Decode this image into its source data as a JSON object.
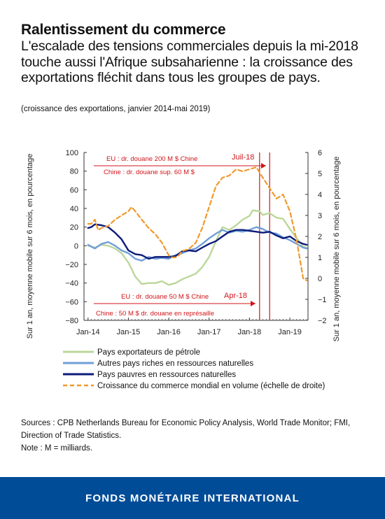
{
  "header": {
    "title": "Ralentissement du commerce",
    "subtitle": "L'escalade des tensions commerciales depuis la mi-2018 touche aussi l'Afrique subsaharienne : la croissance des exportations fléchit dans tous les groupes de pays.",
    "range_note": "(croissance des exportations, janvier 2014-mai 2019)"
  },
  "chart_data": {
    "type": "line",
    "x_ticks": [
      "Jan-14",
      "Jan-15",
      "Jan-16",
      "Jan-17",
      "Jan-18",
      "Jan-19"
    ],
    "x_range": [
      "2014-01",
      "2019-06"
    ],
    "y_left": {
      "label": "Sur 1 an, moyenne mobile sur 6 mois, en pourcentage",
      "range": [
        -80,
        100
      ],
      "ticks": [
        100,
        80,
        60,
        40,
        20,
        0,
        -20,
        -40,
        -60,
        -80
      ]
    },
    "y_right": {
      "label": "Sur 1 an, moyenne mobile sur 6 mois, en pourcentage",
      "range": [
        -2,
        6
      ],
      "ticks": [
        6,
        5,
        4,
        3,
        2,
        1,
        0,
        -1,
        -2
      ]
    },
    "grid": false,
    "legend_position": "bottom",
    "series": [
      {
        "name": "Pays exportateurs de pétrole",
        "axis": "left",
        "color": "#bcd79a",
        "dash": false,
        "points": [
          [
            2014.0,
            0
          ],
          [
            2014.17,
            -2
          ],
          [
            2014.33,
            1
          ],
          [
            2014.5,
            0
          ],
          [
            2014.67,
            -3
          ],
          [
            2014.83,
            -8
          ],
          [
            2015.0,
            -18
          ],
          [
            2015.17,
            -33
          ],
          [
            2015.33,
            -41
          ],
          [
            2015.5,
            -40
          ],
          [
            2015.67,
            -40
          ],
          [
            2015.83,
            -38
          ],
          [
            2016.0,
            -42
          ],
          [
            2016.17,
            -40
          ],
          [
            2016.33,
            -36
          ],
          [
            2016.5,
            -33
          ],
          [
            2016.67,
            -30
          ],
          [
            2016.83,
            -23
          ],
          [
            2017.0,
            -12
          ],
          [
            2017.17,
            5
          ],
          [
            2017.33,
            20
          ],
          [
            2017.5,
            17
          ],
          [
            2017.67,
            22
          ],
          [
            2017.83,
            28
          ],
          [
            2018.0,
            32
          ],
          [
            2018.08,
            38
          ],
          [
            2018.25,
            37
          ],
          [
            2018.33,
            33
          ],
          [
            2018.5,
            35
          ],
          [
            2018.67,
            30
          ],
          [
            2018.83,
            29
          ],
          [
            2019.0,
            18
          ],
          [
            2019.17,
            8
          ],
          [
            2019.33,
            -1
          ],
          [
            2019.42,
            -2
          ]
        ]
      },
      {
        "name": "Autres pays riches en ressources naturelles",
        "axis": "left",
        "color": "#6f9fd8",
        "dash": false,
        "points": [
          [
            2014.0,
            1
          ],
          [
            2014.17,
            -3
          ],
          [
            2014.33,
            2
          ],
          [
            2014.5,
            4
          ],
          [
            2014.67,
            0
          ],
          [
            2014.83,
            -5
          ],
          [
            2015.0,
            -8
          ],
          [
            2015.17,
            -14
          ],
          [
            2015.33,
            -16
          ],
          [
            2015.5,
            -12
          ],
          [
            2015.67,
            -14
          ],
          [
            2015.83,
            -13
          ],
          [
            2016.0,
            -14
          ],
          [
            2016.17,
            -10
          ],
          [
            2016.33,
            -8
          ],
          [
            2016.5,
            -5
          ],
          [
            2016.67,
            -3
          ],
          [
            2016.83,
            2
          ],
          [
            2017.0,
            8
          ],
          [
            2017.17,
            13
          ],
          [
            2017.33,
            17
          ],
          [
            2017.5,
            14
          ],
          [
            2017.67,
            16
          ],
          [
            2017.83,
            15
          ],
          [
            2018.0,
            17
          ],
          [
            2018.17,
            20
          ],
          [
            2018.33,
            18
          ],
          [
            2018.5,
            14
          ],
          [
            2018.67,
            13
          ],
          [
            2018.83,
            9
          ],
          [
            2019.0,
            6
          ],
          [
            2019.17,
            2
          ],
          [
            2019.33,
            -2
          ],
          [
            2019.42,
            -3
          ]
        ]
      },
      {
        "name": "Pays pauvres en ressources naturelles",
        "axis": "left",
        "color": "#0d1b7a",
        "dash": false,
        "points": [
          [
            2014.0,
            19
          ],
          [
            2014.08,
            20
          ],
          [
            2014.17,
            23
          ],
          [
            2014.33,
            22
          ],
          [
            2014.5,
            20
          ],
          [
            2014.67,
            14
          ],
          [
            2014.83,
            7
          ],
          [
            2015.0,
            -5
          ],
          [
            2015.17,
            -9
          ],
          [
            2015.33,
            -10
          ],
          [
            2015.5,
            -14
          ],
          [
            2015.67,
            -12
          ],
          [
            2015.83,
            -12
          ],
          [
            2016.0,
            -12
          ],
          [
            2016.17,
            -11
          ],
          [
            2016.33,
            -6
          ],
          [
            2016.5,
            -5
          ],
          [
            2016.67,
            -6
          ],
          [
            2016.83,
            -2
          ],
          [
            2017.0,
            2
          ],
          [
            2017.17,
            5
          ],
          [
            2017.33,
            10
          ],
          [
            2017.5,
            15
          ],
          [
            2017.67,
            17
          ],
          [
            2017.83,
            17
          ],
          [
            2018.0,
            16
          ],
          [
            2018.17,
            15
          ],
          [
            2018.33,
            14
          ],
          [
            2018.5,
            15
          ],
          [
            2018.67,
            11
          ],
          [
            2018.83,
            8
          ],
          [
            2019.0,
            10
          ],
          [
            2019.17,
            5
          ],
          [
            2019.33,
            2
          ],
          [
            2019.42,
            1
          ]
        ]
      },
      {
        "name": "Croissance du commerce mondial en volume (échelle de droite)",
        "axis": "right",
        "color": "#ef9a2c",
        "dash": true,
        "points": [
          [
            2014.0,
            2.6
          ],
          [
            2014.08,
            2.6
          ],
          [
            2014.17,
            2.8
          ],
          [
            2014.25,
            2.3
          ],
          [
            2014.33,
            2.4
          ],
          [
            2014.5,
            2.5
          ],
          [
            2014.67,
            2.8
          ],
          [
            2014.83,
            3.0
          ],
          [
            2015.0,
            3.2
          ],
          [
            2015.08,
            3.4
          ],
          [
            2015.17,
            3.2
          ],
          [
            2015.33,
            2.8
          ],
          [
            2015.5,
            2.4
          ],
          [
            2015.67,
            2.1
          ],
          [
            2015.83,
            1.7
          ],
          [
            2016.0,
            1.1
          ],
          [
            2016.08,
            1.0
          ],
          [
            2016.17,
            1.0
          ],
          [
            2016.25,
            1.1
          ],
          [
            2016.33,
            1.3
          ],
          [
            2016.5,
            1.4
          ],
          [
            2016.67,
            1.7
          ],
          [
            2016.83,
            2.4
          ],
          [
            2017.0,
            3.4
          ],
          [
            2017.17,
            4.4
          ],
          [
            2017.33,
            4.8
          ],
          [
            2017.5,
            4.9
          ],
          [
            2017.67,
            5.2
          ],
          [
            2017.83,
            5.1
          ],
          [
            2018.0,
            5.2
          ],
          [
            2018.17,
            5.3
          ],
          [
            2018.33,
            4.8
          ],
          [
            2018.5,
            4.3
          ],
          [
            2018.67,
            3.8
          ],
          [
            2018.83,
            4.0
          ],
          [
            2019.0,
            3.2
          ],
          [
            2019.17,
            1.8
          ],
          [
            2019.25,
            0.9
          ],
          [
            2019.33,
            0.0
          ],
          [
            2019.42,
            -0.1
          ]
        ]
      }
    ],
    "vertical_markers": [
      {
        "x": 2018.25,
        "label": "Apr-18"
      },
      {
        "x": 2018.5,
        "label": "Juil-18"
      }
    ],
    "annotations_top": [
      "EU : dr. douane 200 M $ Chine",
      "Chine : dr. douane sup. 60 M $"
    ],
    "annotations_bottom": [
      "EU : dr. douane 50 M $ Chine",
      "Chine : 50 M $ dr. douane en représaille"
    ]
  },
  "sources": "Sources : CPB Netherlands Bureau for Economic Policy Analysis, World Trade Monitor; FMI, Direction of Trade Statistics.",
  "note": "Note : M = milliards.",
  "footer": {
    "org": "FONDS MONÉTAIRE INTERNATIONAL"
  },
  "colors": {
    "footer_bg": "#004C97",
    "annotation_red": "#d0151b"
  }
}
